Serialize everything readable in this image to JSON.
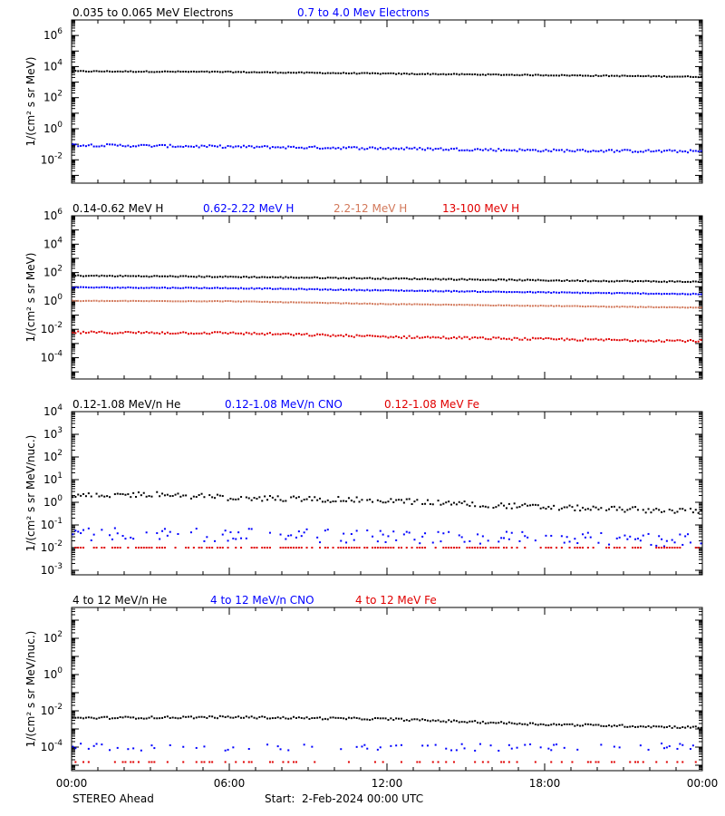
{
  "footer": {
    "left_label": "STEREO Ahead",
    "start_label": "Start:  2-Feb-2024 00:00 UTC"
  },
  "time_axis": {
    "ticks": [
      "00:00",
      "06:00",
      "12:00",
      "18:00",
      "00:00"
    ],
    "x_range_hours": [
      0,
      24
    ]
  },
  "colors": {
    "black": "#000000",
    "blue": "#0000ff",
    "salmon": "#d2785a",
    "red": "#e00000",
    "orange": "#ff8c00"
  },
  "chart_data": [
    {
      "type": "scatter",
      "ylabel": "1/(cm² s sr MeV)",
      "yscale": "log",
      "ylim_exp": [
        -3.5,
        7
      ],
      "y_tick_exponents": [
        -2,
        0,
        2,
        4,
        6
      ],
      "series": [
        {
          "name": "0.035 to 0.065 MeV Electrons",
          "color": "#000000",
          "trend": {
            "hours": [
              0,
              6,
              12,
              18,
              24
            ],
            "values": [
              5000,
              4500,
              3500,
              2800,
              2200
            ]
          },
          "scatter_decades": 0.03,
          "coverage": 1.0,
          "floor": null
        },
        {
          "name": "0.7 to 4.0 Mev Electrons",
          "color": "#0000ff",
          "trend": {
            "hours": [
              0,
              6,
              12,
              18,
              24
            ],
            "values": [
              0.09,
              0.07,
              0.055,
              0.04,
              0.035
            ]
          },
          "scatter_decades": 0.08,
          "coverage": 1.0,
          "floor": null
        }
      ]
    },
    {
      "type": "scatter",
      "ylabel": "1/(cm² s sr MeV)",
      "yscale": "log",
      "ylim_exp": [
        -5.5,
        6
      ],
      "y_tick_exponents": [
        -4,
        -2,
        0,
        2,
        4,
        6
      ],
      "series": [
        {
          "name": "0.14-0.62 MeV H",
          "color": "#000000",
          "trend": {
            "hours": [
              0,
              6,
              12,
              18,
              24
            ],
            "values": [
              60,
              50,
              38,
              28,
              22
            ]
          },
          "scatter_decades": 0.04,
          "coverage": 1.0,
          "floor": null
        },
        {
          "name": "0.62-2.22 MeV H",
          "color": "#0000ff",
          "trend": {
            "hours": [
              0,
              6,
              12,
              18,
              24
            ],
            "values": [
              9,
              8,
              5.5,
              4,
              3
            ]
          },
          "scatter_decades": 0.03,
          "coverage": 1.0,
          "floor": null
        },
        {
          "name": "2.2-12 MeV H",
          "color": "#d2785a",
          "trend": {
            "hours": [
              0,
              6,
              12,
              18,
              24
            ],
            "values": [
              1.0,
              0.95,
              0.6,
              0.45,
              0.33
            ]
          },
          "scatter_decades": 0.02,
          "coverage": 1.0,
          "floor": null
        },
        {
          "name": "13-100 MeV H",
          "color": "#e00000",
          "trend": {
            "hours": [
              0,
              6,
              12,
              18,
              24
            ],
            "values": [
              0.006,
              0.0055,
              0.003,
              0.002,
              0.0015
            ]
          },
          "scatter_decades": 0.08,
          "coverage": 1.0,
          "floor": null
        }
      ]
    },
    {
      "type": "scatter",
      "ylabel": "1/(cm² s sr MeV/nuc.)",
      "yscale": "log",
      "ylim_exp": [
        -3.2,
        4
      ],
      "y_tick_exponents": [
        -3,
        -2,
        -1,
        0,
        1,
        2,
        3,
        4
      ],
      "series": [
        {
          "name": "0.12-1.08 MeV/n He",
          "color": "#000000",
          "trend": {
            "hours": [
              0,
              3,
              6,
              12,
              18,
              24
            ],
            "values": [
              1.8,
              2.3,
              1.6,
              1.2,
              0.6,
              0.4
            ]
          },
          "scatter_decades": 0.12,
          "coverage": 0.92,
          "floor": null
        },
        {
          "name": "0.12-1.08 MeV/n CNO",
          "color": "#0000ff",
          "trend": {
            "hours": [
              0,
              12,
              24
            ],
            "values": [
              0.04,
              0.03,
              0.02
            ]
          },
          "scatter_decades": 0.3,
          "coverage": 0.55,
          "floor": 0.01
        },
        {
          "name": "0.12-1.08 MeV Fe",
          "color": "#e00000",
          "trend": {
            "hours": [
              0,
              24
            ],
            "values": [
              0.01,
              0.01
            ]
          },
          "scatter_decades": 0.0,
          "coverage": 0.6,
          "floor": 0.01
        }
      ]
    },
    {
      "type": "scatter",
      "ylabel": "1/(cm² s sr MeV/nuc.)",
      "yscale": "log",
      "ylim_exp": [
        -5.3,
        3.7
      ],
      "y_tick_exponents": [
        -4,
        -2,
        0,
        2
      ],
      "series": [
        {
          "name": "4 to 12 MeV/n He",
          "color": "#000000",
          "trend": {
            "hours": [
              0,
              6,
              12,
              18,
              24
            ],
            "values": [
              0.004,
              0.0045,
              0.0035,
              0.0018,
              0.0012
            ]
          },
          "scatter_decades": 0.06,
          "coverage": 1.0,
          "floor": null
        },
        {
          "name": "4 to 12 MeV/n CNO",
          "color": "#0000ff",
          "trend": {
            "hours": [
              0,
              24
            ],
            "values": [
              0.0001,
              0.0001
            ]
          },
          "scatter_decades": 0.2,
          "coverage": 0.35,
          "floor": 1.5e-05
        },
        {
          "name": "4 to 12 MeV Fe",
          "color": "#e00000",
          "trend": {
            "hours": [
              0,
              24
            ],
            "values": [
              1.5e-05,
              1.5e-05
            ]
          },
          "scatter_decades": 0.0,
          "coverage": 0.3,
          "floor": 1.5e-05
        }
      ]
    }
  ]
}
